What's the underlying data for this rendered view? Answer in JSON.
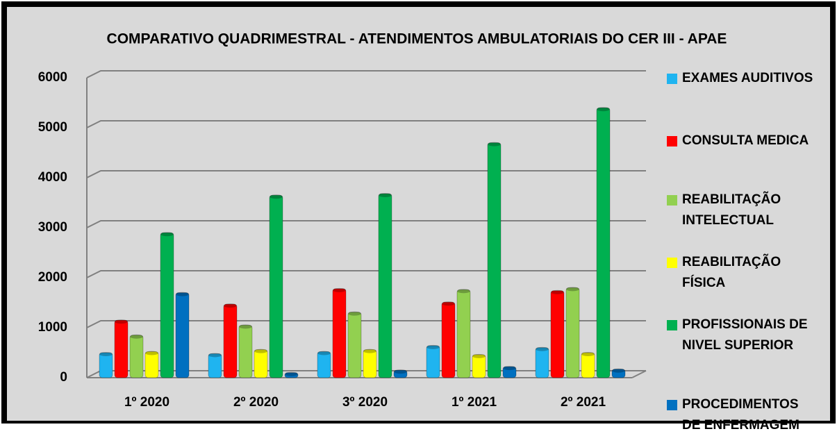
{
  "chart_data": {
    "type": "bar",
    "title": "COMPARATIVO QUADRIMESTRAL - ATENDIMENTOS AMBULATORIAIS DO CER III - APAE",
    "categories": [
      "1º 2020",
      "2º 2020",
      "3º 2020",
      "1º 2021",
      "2º 2021"
    ],
    "series": [
      {
        "name": "EXAMES AUDITIVOS",
        "color": "#1fb4f0",
        "values": [
          500,
          480,
          520,
          640,
          600
        ]
      },
      {
        "name": "CONSULTA MEDICA",
        "color": "#ff0000",
        "values": [
          1150,
          1470,
          1780,
          1510,
          1740
        ]
      },
      {
        "name": "REABILITAÇÃO INTELECTUAL",
        "color": "#92d050",
        "values": [
          850,
          1050,
          1310,
          1760,
          1800
        ]
      },
      {
        "name": "REABILITAÇÃO FÍSICA",
        "color": "#ffff00",
        "values": [
          520,
          560,
          560,
          460,
          500
        ]
      },
      {
        "name": "PROFISSIONAIS DE NIVEL SUPERIOR",
        "color": "#00b050",
        "values": [
          2900,
          3650,
          3680,
          4700,
          5400
        ]
      },
      {
        "name": "PROCEDIMENTOS DE ENFERMAGEM",
        "color": "#0070c0",
        "values": [
          1700,
          100,
          150,
          220,
          170
        ]
      }
    ],
    "ylim": [
      0,
      6000
    ],
    "yticks": [
      0,
      1000,
      2000,
      3000,
      4000,
      5000,
      6000
    ],
    "grid": true,
    "legend": "right"
  }
}
